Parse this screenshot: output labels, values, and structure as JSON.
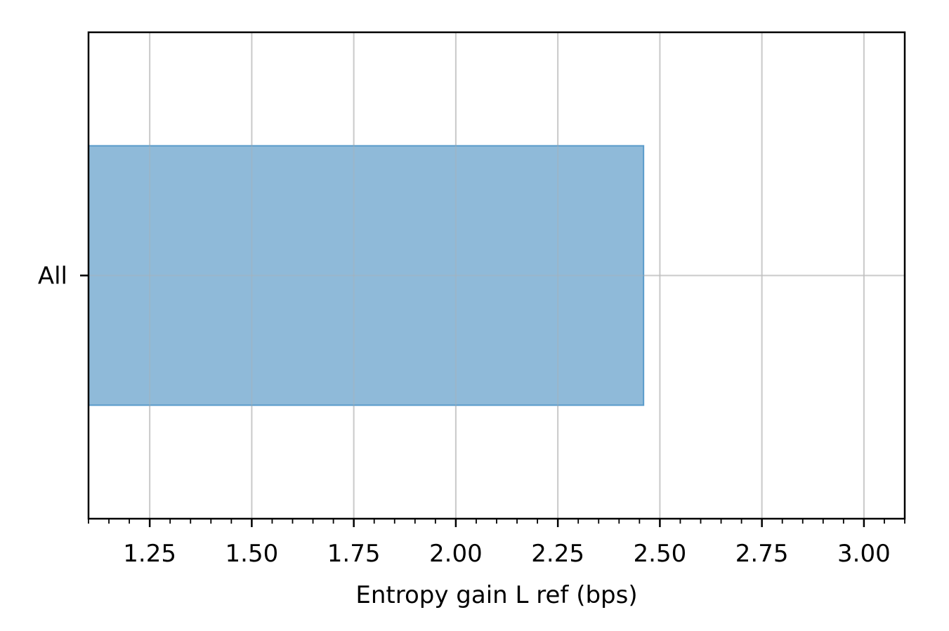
{
  "chart_data": {
    "type": "bar",
    "orientation": "horizontal",
    "categories": [
      "All"
    ],
    "values": [
      2.46
    ],
    "xlabel": "Entropy gain L ref (bps)",
    "ylabel": "",
    "xlim": [
      1.1,
      3.1
    ],
    "xticks": [
      1.25,
      1.5,
      1.75,
      2.0,
      2.25,
      2.5,
      2.75,
      3.0
    ],
    "xtick_labels": [
      "1.25",
      "1.50",
      "1.75",
      "2.00",
      "2.25",
      "2.50",
      "2.75",
      "3.00"
    ],
    "minor_tick_step": 0.05,
    "grid": true,
    "colors": {
      "bar_fill": "#8fbad9",
      "bar_edge": "#5b9ccb",
      "grid": "#d9d9d9",
      "axes": "#000000"
    }
  }
}
